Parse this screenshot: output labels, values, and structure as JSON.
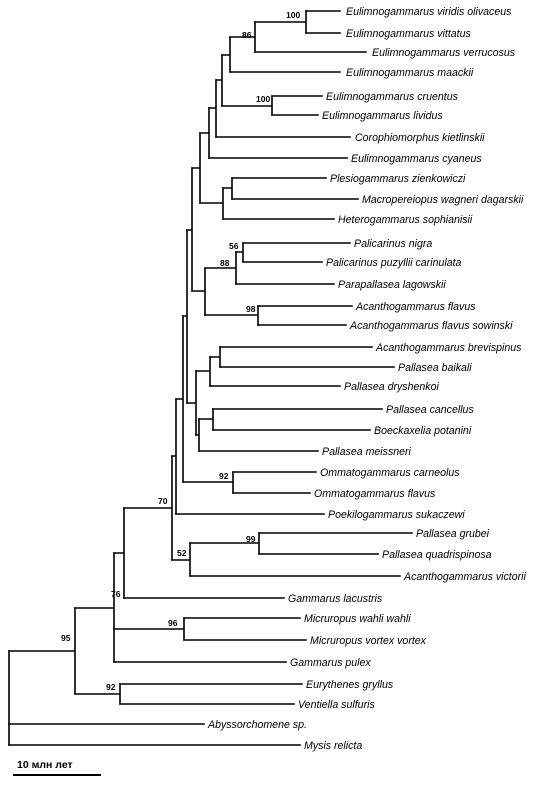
{
  "taxa": [
    "Eulimnogammarus viridis olivaceus",
    "Eulimnogammarus vittatus",
    "Eulimnogammarus verrucosus",
    "Eulimnogammarus maackii",
    "Eulimnogammarus cruentus",
    "Eulimnogammarus lividus",
    "Corophiomorphus kietlinskii",
    "Eulimnogammarus cyaneus",
    "Plesiogammarus zienkowiczi",
    "Macropereiopus wagneri dagarskii",
    "Heterogammarus sophianisii",
    "Palicarinus nigra",
    "Palicarinus puzyllii carinulata",
    "Parapallasea lagowskii",
    "Acanthogammarus flavus",
    "Acanthogammarus flavus sowinski",
    "Acanthogammarus brevispinus",
    "Pallasea baikali",
    "Pallasea dryshenkoi",
    "Pallasea cancellus",
    "Boeckaxelia potanini",
    "Pallasea meissneri",
    "Ommatogammarus carneolus",
    "Ommatogammarus flavus",
    "Poekilogammarus sukaczewi",
    "Pallasea grubei",
    "Pallasea quadrispinosa",
    "Acanthogammarus victorii",
    "Gammarus lacustris",
    "Micruropus wahli wahli",
    "Micruropus vortex vortex",
    "Gammarus pulex",
    "Eurythenes gryllus",
    "Ventiella sulfuris",
    "Abyssorchomene sp.",
    "Mysis relicta"
  ],
  "bootstrap": {
    "viridis_vittatus": "100",
    "viridis_vittatus_verrucosus": "86",
    "cruentus_lividus": "100",
    "palicarinus_pair": "56",
    "palicarinus_parapallasea": "88",
    "acanthogammarus_flavus_pair": "98",
    "ommatogammarus_pair": "92",
    "baikal_clade": "70",
    "grubei_quadrispinosa": "99",
    "grubei_quadrispinosa_victorii": "52",
    "with_gammarus_lacustris": "76",
    "micruropus_pair": "96",
    "eurythenes_ventiella": "92",
    "ingroup": "95"
  },
  "scale_bar": {
    "label": "10 млн лет"
  }
}
